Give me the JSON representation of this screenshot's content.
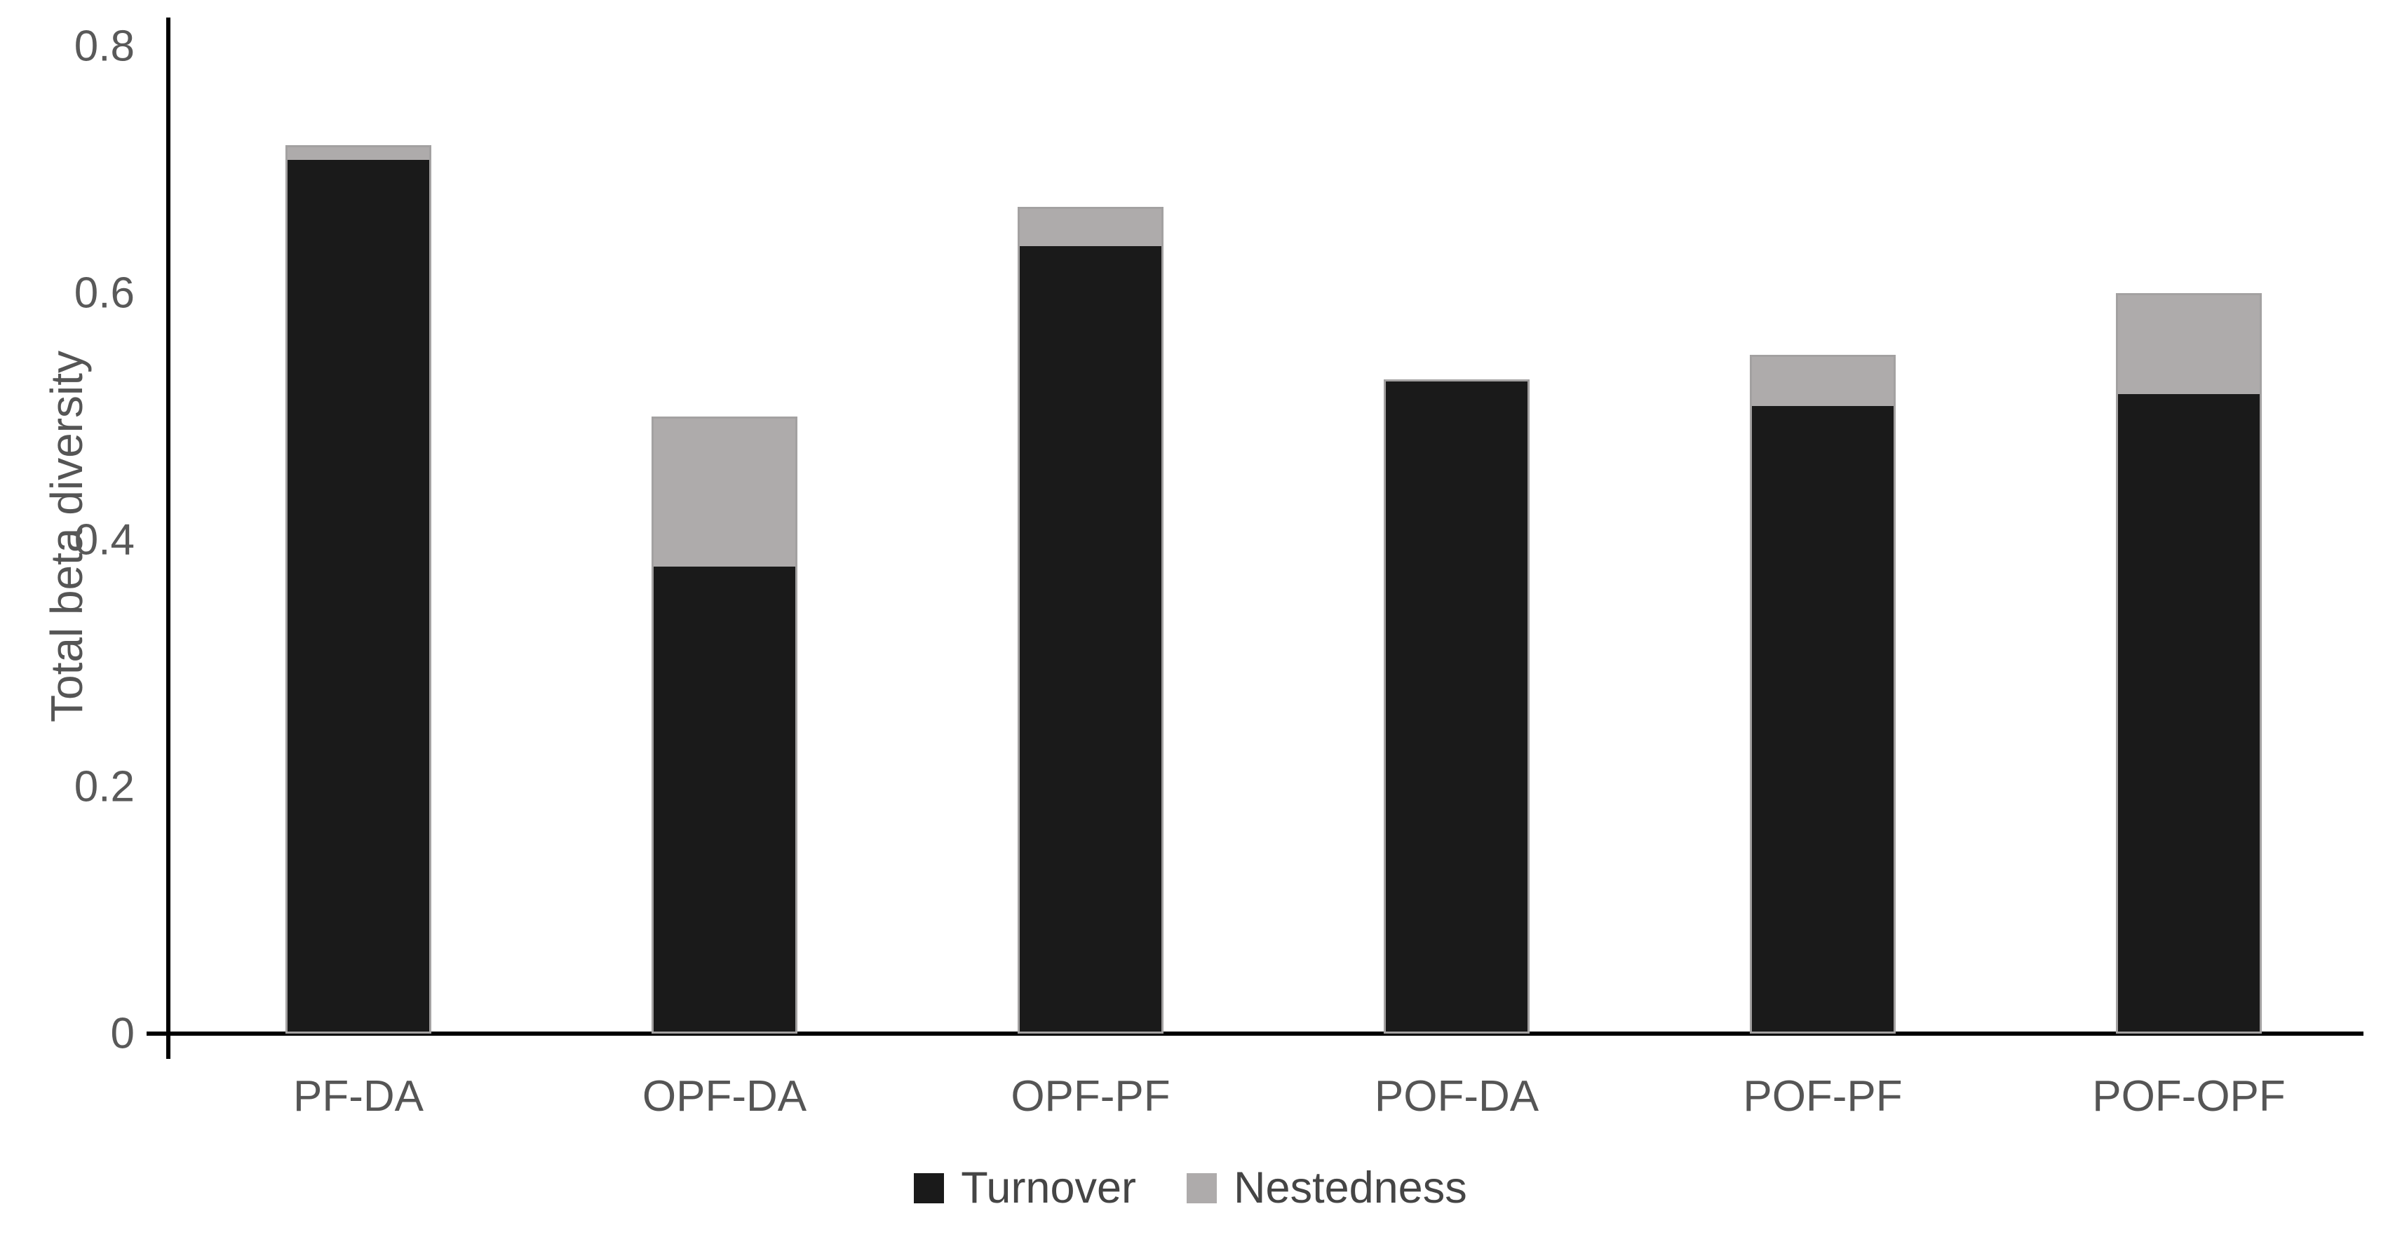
{
  "chart_data": {
    "type": "bar",
    "stacked": true,
    "title": "",
    "xlabel": "",
    "ylabel": "Total beta diversity",
    "ylim": [
      0,
      0.8
    ],
    "ytick_values": [
      0,
      0.2,
      0.4,
      0.6,
      0.8
    ],
    "ytick_labels": [
      "0",
      "0.2",
      "0.4",
      "0.6",
      "0.8"
    ],
    "grid": false,
    "legend_position": "bottom-center",
    "categories": [
      "PF-DA",
      "OPF-DA",
      "OPF-PF",
      "POF-DA",
      "POF-PF",
      "POF-OPF"
    ],
    "series": [
      {
        "name": "Turnover",
        "color": "#1a1a1a",
        "values": [
          0.71,
          0.38,
          0.64,
          0.53,
          0.51,
          0.52
        ]
      },
      {
        "name": "Nestedness",
        "color": "#aeabab",
        "values": [
          0.01,
          0.12,
          0.03,
          0.0,
          0.04,
          0.08
        ]
      }
    ],
    "stack_totals": [
      0.72,
      0.5,
      0.67,
      0.53,
      0.55,
      0.6
    ],
    "bar_outline_color": "#a3a1a1",
    "axis_color": "#000000",
    "tick_text_color": "#595959"
  }
}
